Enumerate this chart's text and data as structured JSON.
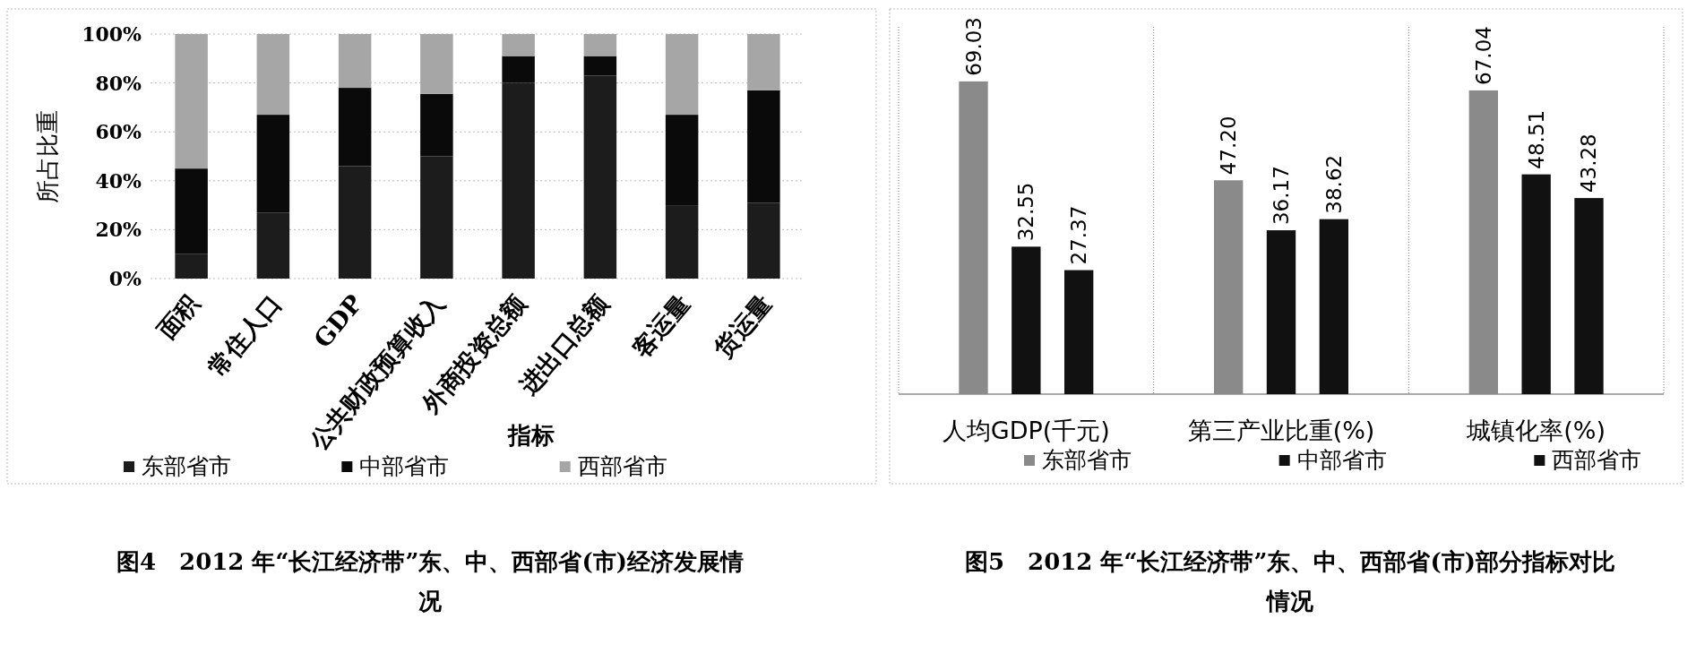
{
  "chart_data": [
    {
      "type": "bar",
      "title": "图4　2012 年“长江经济带”东、中、西部省(市)经济发展情况",
      "xlabel": "指标",
      "ylabel": "所占比重",
      "stacked": true,
      "categories": [
        "面积",
        "常住人口",
        "GDP",
        "公共财政预算收入",
        "外商投资总额",
        "进出口总额",
        "客运量",
        "货运量"
      ],
      "series": [
        {
          "name": "东部省市",
          "color": "#1c1c1c",
          "values": [
            10,
            27,
            46,
            50,
            80,
            83,
            30,
            31
          ]
        },
        {
          "name": "中部省市",
          "color": "#0a0a0a",
          "values": [
            35,
            40,
            32,
            25.5,
            11,
            8,
            37,
            46
          ]
        },
        {
          "name": "西部省市",
          "color": "#a6a6a6",
          "values": [
            55,
            33,
            22,
            24.5,
            9,
            9,
            33,
            23
          ]
        }
      ],
      "ylim": [
        0,
        100
      ],
      "yticks": [
        {
          "value": 0,
          "label": "0%"
        },
        {
          "value": 20,
          "label": "20%"
        },
        {
          "value": 40,
          "label": "40%"
        },
        {
          "value": 60,
          "label": "60%"
        },
        {
          "value": 80,
          "label": "80%"
        },
        {
          "value": 100,
          "label": "100%"
        }
      ],
      "grid": "y",
      "legend": "bottom"
    },
    {
      "type": "bar",
      "title": "图5　2012 年“长江经济带”东、中、西部省(市)部分指标对比情况",
      "data_labels": true,
      "categories": [
        "人均GDP(千元)",
        "第三产业比重(%)",
        "城镇化率(%)"
      ],
      "series": [
        {
          "name": "东部省市",
          "color": "#8a8a8a",
          "values": [
            69.03,
            47.2,
            67.04
          ],
          "value_labels": [
            "69.03",
            "47.20",
            "67.04"
          ]
        },
        {
          "name": "中部省市",
          "color": "#111111",
          "values": [
            32.55,
            36.17,
            48.51
          ],
          "value_labels": [
            "32.55",
            "36.17",
            "48.51"
          ]
        },
        {
          "name": "西部省市",
          "color": "#111111",
          "values": [
            27.37,
            38.62,
            43.28
          ],
          "value_labels": [
            "27.37",
            "38.62",
            "43.28"
          ]
        }
      ],
      "legend": "bottom"
    }
  ]
}
